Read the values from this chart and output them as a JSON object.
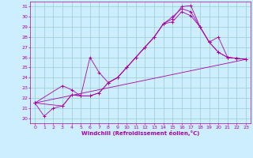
{
  "xlabel": "Windchill (Refroidissement éolien,°C)",
  "bg_color": "#cceeff",
  "line_color": "#aa00aa",
  "grid_color": "#99cccc",
  "xlim": [
    -0.5,
    23.5
  ],
  "ylim": [
    19.5,
    31.5
  ],
  "yticks": [
    20,
    21,
    22,
    23,
    24,
    25,
    26,
    27,
    28,
    29,
    30,
    31
  ],
  "xticks": [
    0,
    1,
    2,
    3,
    4,
    5,
    6,
    7,
    8,
    9,
    10,
    11,
    12,
    13,
    14,
    15,
    16,
    17,
    18,
    19,
    20,
    21,
    22,
    23
  ],
  "lines": [
    {
      "x": [
        0,
        1,
        2,
        3,
        4,
        5,
        6,
        7,
        8,
        9,
        10,
        11,
        12,
        13,
        14,
        15,
        16,
        17,
        18,
        19,
        20,
        21,
        22,
        23
      ],
      "y": [
        21.5,
        20.2,
        21.0,
        21.2,
        22.3,
        22.2,
        22.2,
        22.5,
        23.5,
        24.0,
        25.0,
        26.0,
        27.0,
        28.0,
        29.3,
        29.5,
        30.5,
        30.1,
        29.0,
        27.5,
        26.5,
        26.0,
        25.9,
        25.8
      ]
    },
    {
      "x": [
        0,
        3,
        4,
        5,
        6,
        7,
        8,
        9,
        10,
        11,
        12,
        13,
        14,
        15,
        16,
        17,
        18,
        19,
        20,
        21,
        22,
        23
      ],
      "y": [
        21.5,
        21.2,
        22.3,
        22.2,
        22.2,
        22.5,
        23.5,
        24.0,
        25.0,
        26.0,
        27.0,
        28.0,
        29.3,
        29.8,
        31.0,
        31.1,
        29.0,
        27.5,
        26.5,
        26.0,
        25.9,
        25.8
      ]
    },
    {
      "x": [
        0,
        3,
        4,
        5,
        6,
        7,
        8,
        9,
        10,
        11,
        12,
        13,
        14,
        15,
        16,
        17,
        18,
        19,
        20,
        21,
        22,
        23
      ],
      "y": [
        21.5,
        23.2,
        22.8,
        22.2,
        26.0,
        24.5,
        23.5,
        24.0,
        25.0,
        26.0,
        27.0,
        28.0,
        29.3,
        30.0,
        30.8,
        30.5,
        29.0,
        27.5,
        28.0,
        26.0,
        25.9,
        25.8
      ]
    },
    {
      "x": [
        0,
        23
      ],
      "y": [
        21.5,
        25.8
      ]
    }
  ]
}
